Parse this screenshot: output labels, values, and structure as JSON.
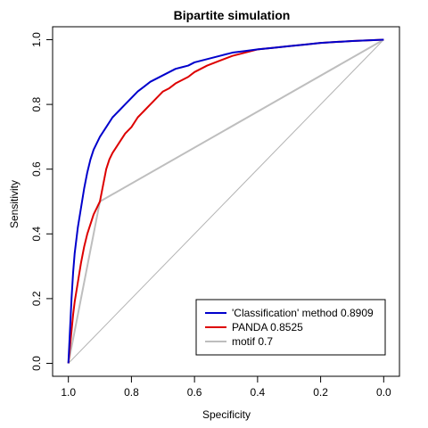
{
  "chart_data": {
    "type": "line",
    "title": "Bipartite simulation",
    "xlabel": "Specificity",
    "ylabel": "Sensitivity",
    "xlim": [
      1.05,
      -0.05
    ],
    "ylim": [
      -0.04,
      1.04
    ],
    "x_ticks": [
      "1.0",
      "0.8",
      "0.6",
      "0.4",
      "0.2",
      "0.0"
    ],
    "y_ticks": [
      "0.0",
      "0.2",
      "0.4",
      "0.6",
      "0.8",
      "1.0"
    ],
    "legend_position": "bottom-right",
    "reference_line": {
      "x": [
        1,
        0
      ],
      "y": [
        0,
        1
      ],
      "color": "#b3b3b3"
    },
    "series": [
      {
        "name": "'Classification' method 0.8909",
        "color": "#0000cc",
        "x": [
          1.0,
          0.995,
          0.99,
          0.985,
          0.98,
          0.97,
          0.96,
          0.95,
          0.94,
          0.93,
          0.92,
          0.9,
          0.88,
          0.86,
          0.84,
          0.82,
          0.8,
          0.78,
          0.76,
          0.74,
          0.72,
          0.7,
          0.68,
          0.66,
          0.64,
          0.62,
          0.6,
          0.56,
          0.52,
          0.48,
          0.44,
          0.4,
          0.35,
          0.3,
          0.25,
          0.2,
          0.15,
          0.1,
          0.05,
          0.0
        ],
        "y": [
          0.0,
          0.1,
          0.2,
          0.28,
          0.34,
          0.42,
          0.48,
          0.54,
          0.59,
          0.63,
          0.66,
          0.7,
          0.73,
          0.76,
          0.78,
          0.8,
          0.82,
          0.84,
          0.855,
          0.87,
          0.88,
          0.89,
          0.9,
          0.91,
          0.915,
          0.92,
          0.93,
          0.94,
          0.95,
          0.96,
          0.965,
          0.97,
          0.975,
          0.98,
          0.985,
          0.99,
          0.993,
          0.996,
          0.998,
          1.0
        ]
      },
      {
        "name": "PANDA 0.8525",
        "color": "#dd0000",
        "x": [
          1.0,
          0.995,
          0.99,
          0.985,
          0.98,
          0.97,
          0.96,
          0.95,
          0.94,
          0.93,
          0.92,
          0.91,
          0.9,
          0.89,
          0.88,
          0.87,
          0.86,
          0.84,
          0.82,
          0.8,
          0.78,
          0.76,
          0.74,
          0.72,
          0.7,
          0.68,
          0.66,
          0.64,
          0.62,
          0.6,
          0.56,
          0.52,
          0.48,
          0.44,
          0.4,
          0.35,
          0.3,
          0.25,
          0.2,
          0.15,
          0.1,
          0.05,
          0.0
        ],
        "y": [
          0.0,
          0.05,
          0.1,
          0.15,
          0.19,
          0.25,
          0.31,
          0.36,
          0.4,
          0.43,
          0.46,
          0.48,
          0.5,
          0.55,
          0.6,
          0.63,
          0.65,
          0.68,
          0.71,
          0.73,
          0.76,
          0.78,
          0.8,
          0.82,
          0.84,
          0.85,
          0.865,
          0.875,
          0.885,
          0.9,
          0.92,
          0.935,
          0.95,
          0.96,
          0.97,
          0.975,
          0.98,
          0.985,
          0.99,
          0.993,
          0.996,
          0.998,
          1.0
        ]
      },
      {
        "name": "motif 0.7",
        "color": "#bebebe",
        "x": [
          1.0,
          0.9,
          0.0
        ],
        "y": [
          0.0,
          0.5,
          1.0
        ]
      }
    ]
  }
}
